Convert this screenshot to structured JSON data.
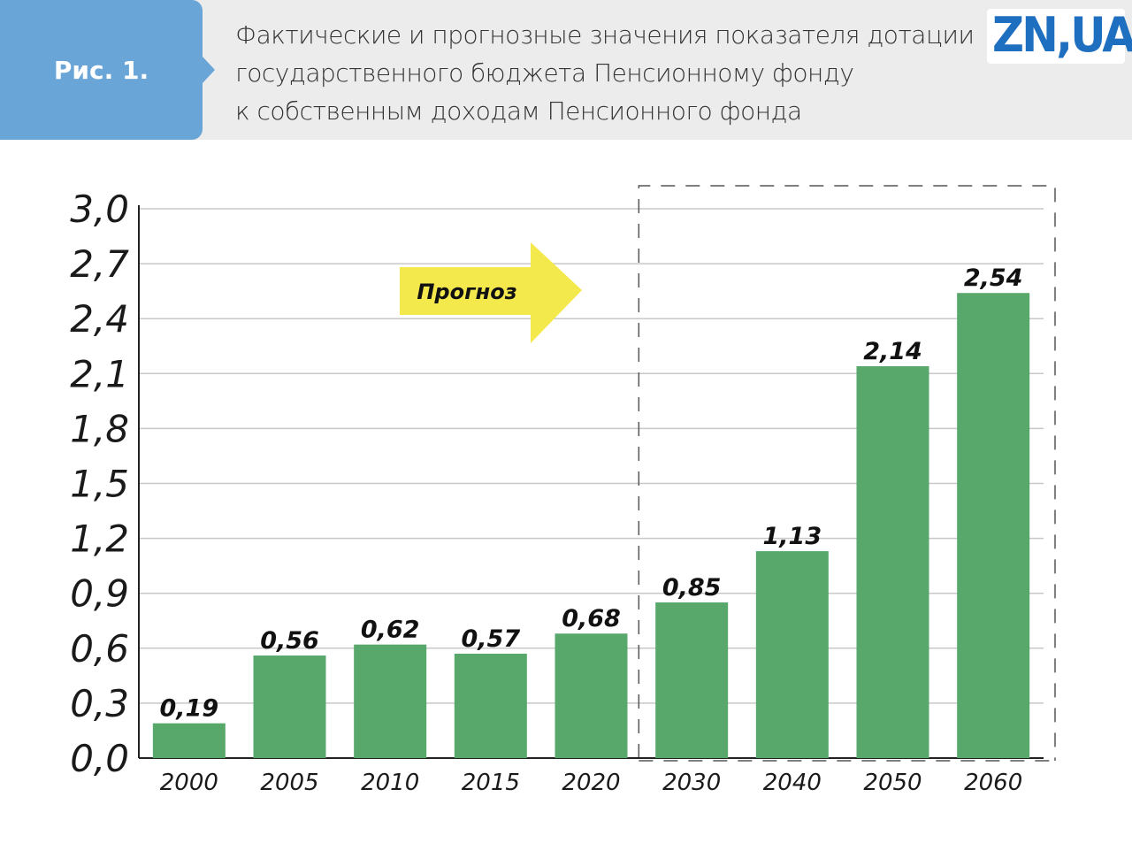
{
  "header": {
    "figure_label": "Рис. 1.",
    "title_lines": [
      "Фактические и прогнозные значения показателя дотации",
      "государственного бюджета Пенсионному фонду",
      "к собственным доходам Пенсионного фонда"
    ],
    "logo_text": "ZN,UA"
  },
  "colors": {
    "bar": "#58a86c",
    "forecast_arrow": "#f3e94d",
    "header_bg": "#ececec",
    "tab_bg": "#6aa5d8",
    "logo": "#1f6fc0"
  },
  "chart_data": {
    "type": "bar",
    "title": "Фактические и прогнозные значения показателя дотации государственного бюджета Пенсионному фонду к собственным доходам Пенсионного фонда",
    "categories": [
      "2000",
      "2005",
      "2010",
      "2015",
      "2020",
      "2030",
      "2040",
      "2050",
      "2060"
    ],
    "values": [
      0.19,
      0.56,
      0.62,
      0.57,
      0.68,
      0.85,
      1.13,
      2.14,
      2.54
    ],
    "value_labels": [
      "0,19",
      "0,56",
      "0,62",
      "0,57",
      "0,68",
      "0,85",
      "1,13",
      "2,14",
      "2,54"
    ],
    "ylim": [
      0,
      3.0
    ],
    "yticks": [
      "0,0",
      "0,3",
      "0,6",
      "0,9",
      "1,2",
      "1,5",
      "1,8",
      "2,1",
      "2,4",
      "2,7",
      "3,0"
    ],
    "grid": true,
    "forecast_label": "Прогноз",
    "forecast_start_category": "2030"
  }
}
